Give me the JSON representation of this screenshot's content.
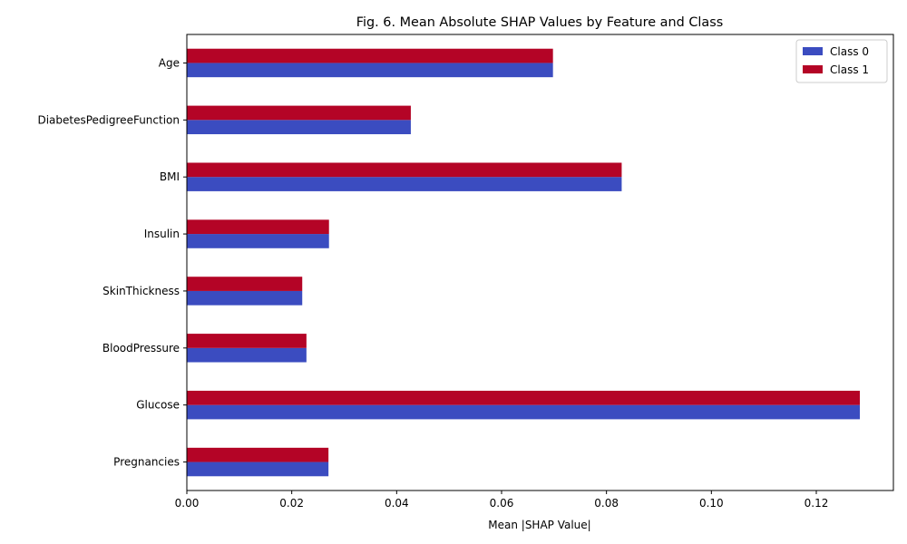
{
  "chart_data": {
    "type": "bar",
    "orientation": "horizontal",
    "title": "Fig. 6. Mean Absolute SHAP Values by Feature and Class",
    "xlabel": "Mean |SHAP Value|",
    "ylabel": "",
    "categories": [
      "Pregnancies",
      "Glucose",
      "BloodPressure",
      "SkinThickness",
      "Insulin",
      "BMI",
      "DiabetesPedigreeFunction",
      "Age"
    ],
    "series": [
      {
        "name": "Class 0",
        "color": "#3b4cc0",
        "values": [
          0.027,
          0.1283,
          0.0228,
          0.022,
          0.0271,
          0.0829,
          0.0427,
          0.0698
        ]
      },
      {
        "name": "Class 1",
        "color": "#b40426",
        "values": [
          0.027,
          0.1283,
          0.0228,
          0.022,
          0.0271,
          0.0829,
          0.0427,
          0.0698
        ]
      }
    ],
    "xlim": [
      0,
      0.1347
    ],
    "xticks": [
      "0.00",
      "0.02",
      "0.04",
      "0.06",
      "0.08",
      "0.10",
      "0.12"
    ],
    "grid": false,
    "legend_position": "top-right"
  }
}
